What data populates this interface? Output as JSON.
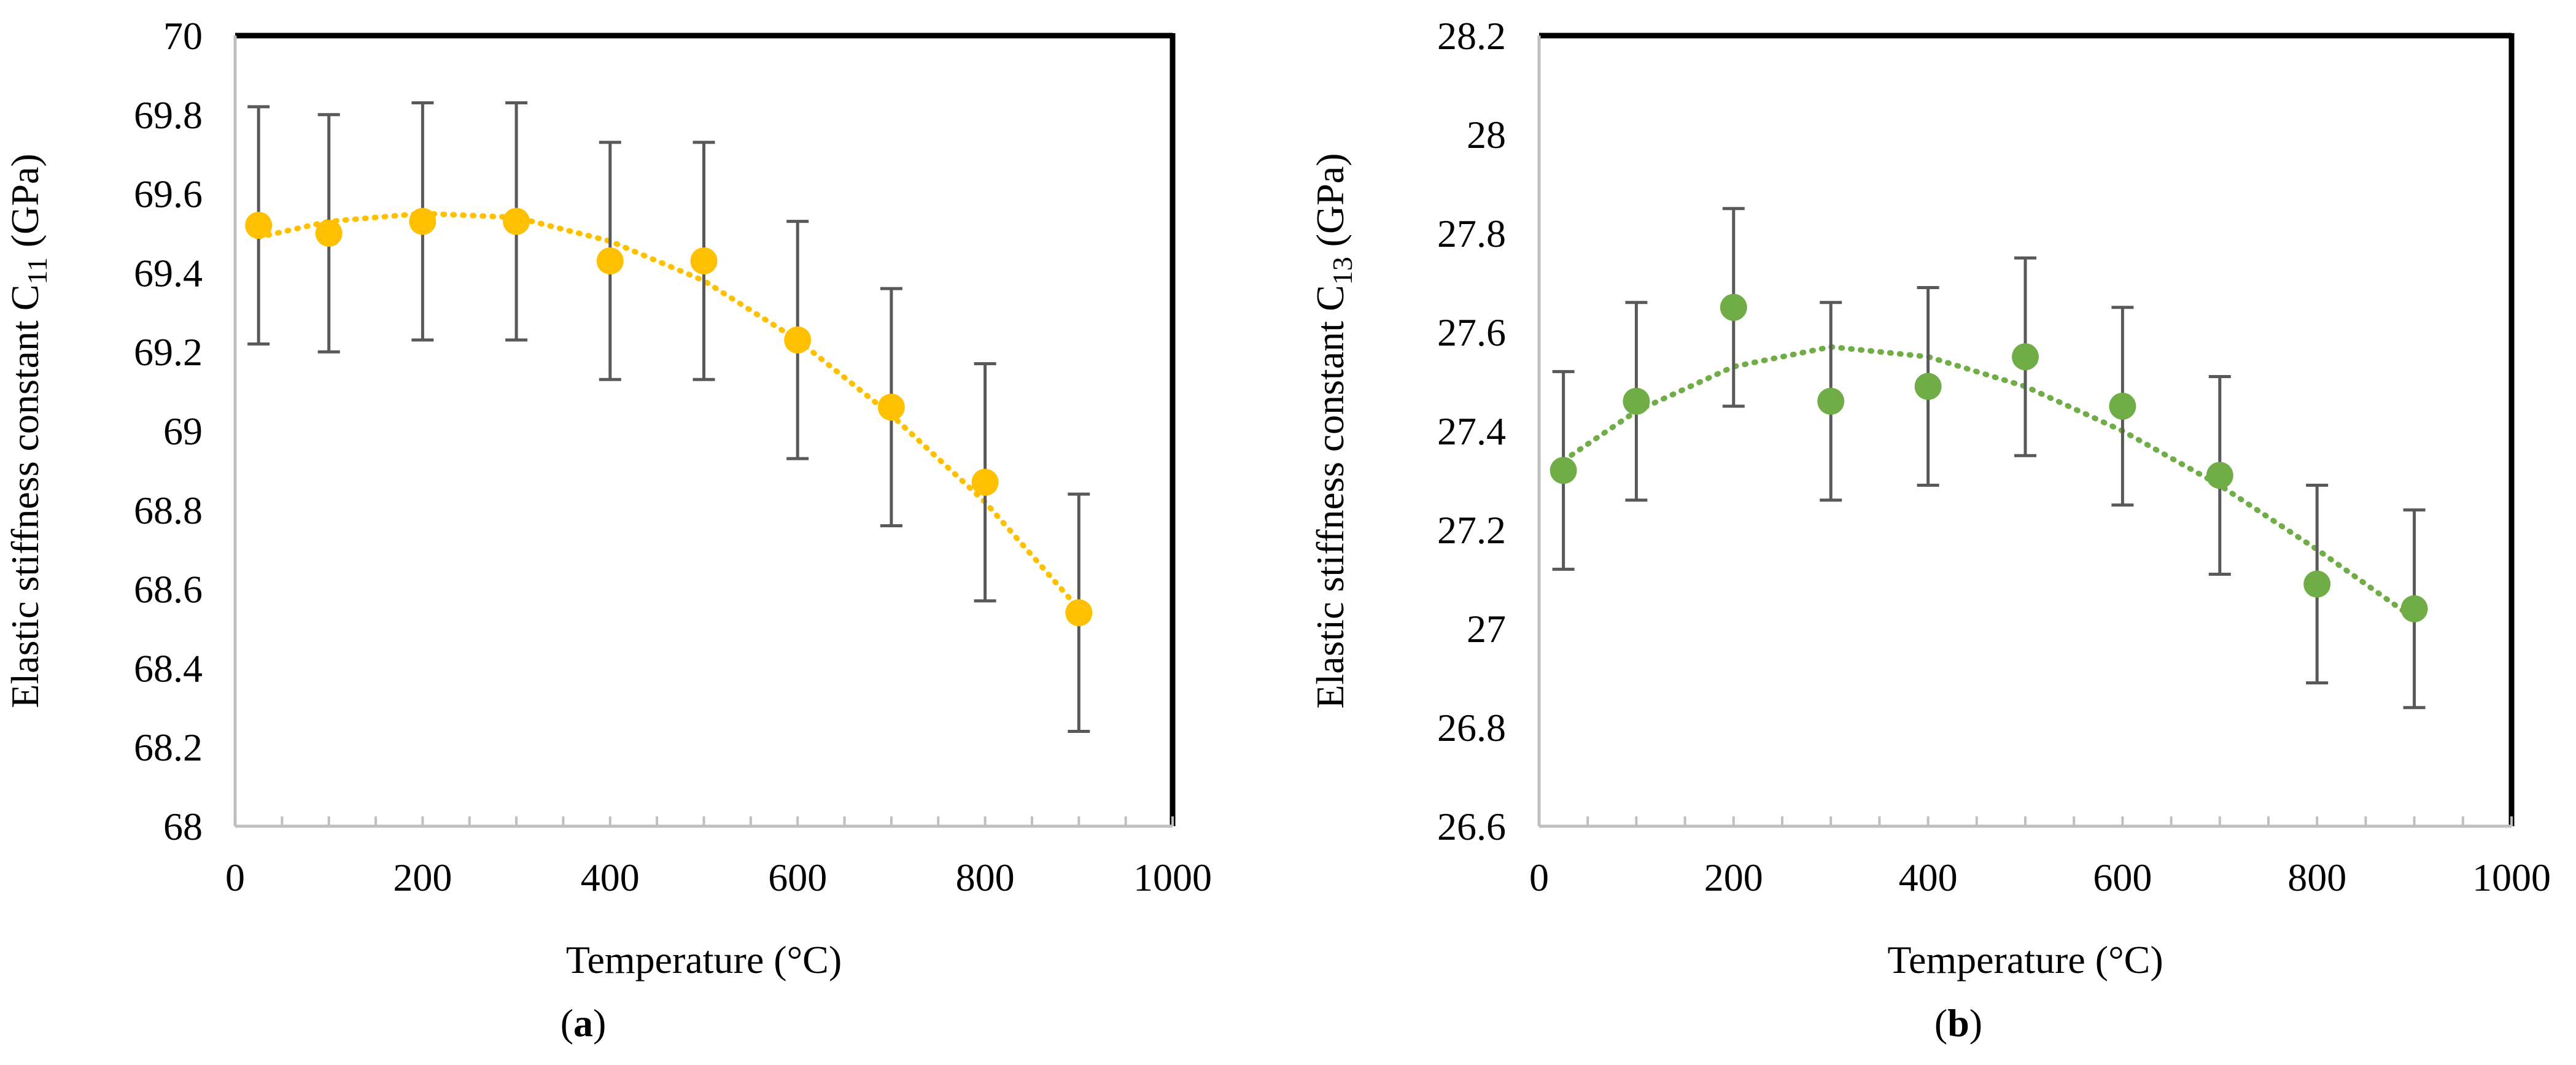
{
  "chart_data": [
    {
      "type": "scatter",
      "panel_label": "a",
      "xlabel": "Temperature (°C)",
      "ylabel_main": "Elastic stiffness constant C",
      "ylabel_sub": "11",
      "ylabel_unit": "(GPa)",
      "xlim": [
        0,
        1000
      ],
      "ylim": [
        68,
        70
      ],
      "xticks": [
        0,
        200,
        400,
        600,
        800,
        1000
      ],
      "yticks": [
        68,
        68.2,
        68.4,
        68.6,
        68.8,
        69,
        69.2,
        69.4,
        69.6,
        69.8,
        70
      ],
      "ytick_labels": [
        "68",
        "68.2",
        "68.4",
        "68.6",
        "68.8",
        "69",
        "69.2",
        "69.4",
        "69.6",
        "69.8",
        "70"
      ],
      "series": [
        {
          "name": "C11",
          "color": "#FFC000",
          "x": [
            25,
            100,
            200,
            300,
            400,
            500,
            600,
            700,
            800,
            900
          ],
          "y": [
            69.52,
            69.5,
            69.53,
            69.53,
            69.43,
            69.43,
            69.23,
            69.06,
            68.87,
            68.54
          ],
          "error": [
            0.3,
            0.3,
            0.3,
            0.3,
            0.3,
            0.3,
            0.3,
            0.3,
            0.3,
            0.3
          ],
          "trendline": {
            "type": "polynomial",
            "order": 2,
            "x": [
              25,
              100,
              200,
              300,
              400,
              500,
              600,
              700,
              800,
              900
            ],
            "y": [
              69.49,
              69.53,
              69.55,
              69.54,
              69.48,
              69.38,
              69.23,
              69.04,
              68.82,
              68.55
            ]
          }
        }
      ]
    },
    {
      "type": "scatter",
      "panel_label": "b",
      "xlabel": "Temperature (°C)",
      "ylabel_main": "Elastic stiffness constant C",
      "ylabel_sub": "13",
      "ylabel_unit": "(GPa)",
      "xlim": [
        0,
        1000
      ],
      "ylim": [
        26.6,
        28.2
      ],
      "xticks": [
        0,
        200,
        400,
        600,
        800,
        1000
      ],
      "yticks": [
        26.6,
        26.8,
        27,
        27.2,
        27.4,
        27.6,
        27.8,
        28,
        28.2
      ],
      "ytick_labels": [
        "26.6",
        "26.8",
        "27",
        "27.2",
        "27.4",
        "27.6",
        "27.8",
        "28",
        "28.2"
      ],
      "series": [
        {
          "name": "C13",
          "color": "#70AD47",
          "x": [
            25,
            100,
            200,
            300,
            400,
            500,
            600,
            700,
            800,
            900
          ],
          "y": [
            27.32,
            27.46,
            27.65,
            27.46,
            27.49,
            27.55,
            27.45,
            27.31,
            27.09,
            27.04
          ],
          "error": [
            0.2,
            0.2,
            0.2,
            0.2,
            0.2,
            0.2,
            0.2,
            0.2,
            0.2,
            0.2
          ],
          "trendline": {
            "type": "polynomial",
            "order": 2,
            "x": [
              25,
              100,
              200,
              300,
              400,
              500,
              600,
              700,
              800,
              900
            ],
            "y": [
              27.34,
              27.44,
              27.53,
              27.57,
              27.55,
              27.49,
              27.4,
              27.29,
              27.16,
              27.02
            ]
          }
        }
      ]
    }
  ]
}
